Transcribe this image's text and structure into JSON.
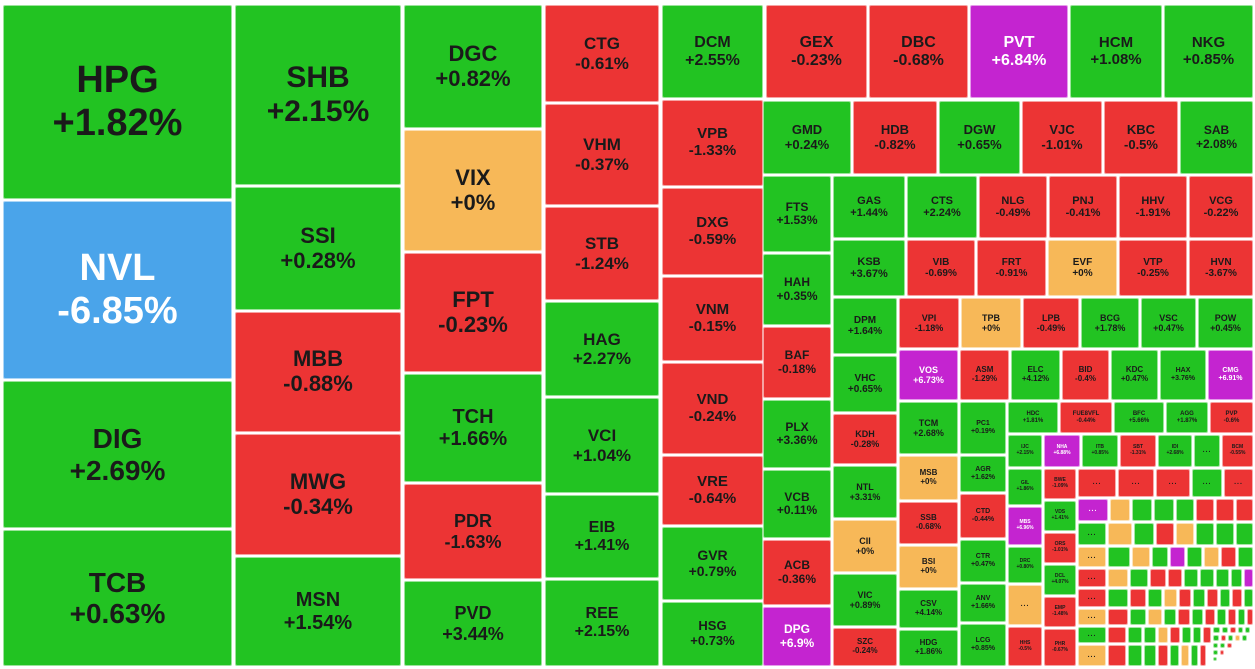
{
  "chart_data": {
    "type": "treemap",
    "title": "",
    "colors": {
      "up": "#22c322",
      "down": "#ec3434",
      "flat": "#f7b858",
      "ceiling": "#c424d0",
      "floor": "#4aa4ea"
    },
    "tiles": [
      {
        "ticker": "HPG",
        "change": "+1.82%",
        "status": "up"
      },
      {
        "ticker": "NVL",
        "change": "-6.85%",
        "status": "floor"
      },
      {
        "ticker": "DIG",
        "change": "+2.69%",
        "status": "up"
      },
      {
        "ticker": "TCB",
        "change": "+0.63%",
        "status": "up"
      },
      {
        "ticker": "SHB",
        "change": "+2.15%",
        "status": "up"
      },
      {
        "ticker": "SSI",
        "change": "+0.28%",
        "status": "up"
      },
      {
        "ticker": "MBB",
        "change": "-0.88%",
        "status": "down"
      },
      {
        "ticker": "MWG",
        "change": "-0.34%",
        "status": "down"
      },
      {
        "ticker": "MSN",
        "change": "+1.54%",
        "status": "up"
      },
      {
        "ticker": "DGC",
        "change": "+0.82%",
        "status": "up"
      },
      {
        "ticker": "VIX",
        "change": "+0%",
        "status": "flat"
      },
      {
        "ticker": "FPT",
        "change": "-0.23%",
        "status": "down"
      },
      {
        "ticker": "TCH",
        "change": "+1.66%",
        "status": "up"
      },
      {
        "ticker": "PDR",
        "change": "-1.63%",
        "status": "down"
      },
      {
        "ticker": "PVD",
        "change": "+3.44%",
        "status": "up"
      },
      {
        "ticker": "CTG",
        "change": "-0.61%",
        "status": "down"
      },
      {
        "ticker": "VHM",
        "change": "-0.37%",
        "status": "down"
      },
      {
        "ticker": "STB",
        "change": "-1.24%",
        "status": "down"
      },
      {
        "ticker": "HAG",
        "change": "+2.27%",
        "status": "up"
      },
      {
        "ticker": "VCI",
        "change": "+1.04%",
        "status": "up"
      },
      {
        "ticker": "EIB",
        "change": "+1.41%",
        "status": "up"
      },
      {
        "ticker": "REE",
        "change": "+2.15%",
        "status": "up"
      },
      {
        "ticker": "DCM",
        "change": "+2.55%",
        "status": "up"
      },
      {
        "ticker": "VPB",
        "change": "-1.33%",
        "status": "down"
      },
      {
        "ticker": "DXG",
        "change": "-0.59%",
        "status": "down"
      },
      {
        "ticker": "VNM",
        "change": "-0.15%",
        "status": "down"
      },
      {
        "ticker": "VND",
        "change": "-0.24%",
        "status": "down"
      },
      {
        "ticker": "VRE",
        "change": "-0.64%",
        "status": "down"
      },
      {
        "ticker": "GVR",
        "change": "+0.79%",
        "status": "up"
      },
      {
        "ticker": "HSG",
        "change": "+0.73%",
        "status": "up"
      },
      {
        "ticker": "GEX",
        "change": "-0.23%",
        "status": "down"
      },
      {
        "ticker": "DBC",
        "change": "-0.68%",
        "status": "down"
      },
      {
        "ticker": "PVT",
        "change": "+6.84%",
        "status": "ceiling"
      },
      {
        "ticker": "HCM",
        "change": "+1.08%",
        "status": "up"
      },
      {
        "ticker": "NKG",
        "change": "+0.85%",
        "status": "up"
      },
      {
        "ticker": "GMD",
        "change": "+0.24%",
        "status": "up"
      },
      {
        "ticker": "HDB",
        "change": "-0.82%",
        "status": "down"
      },
      {
        "ticker": "DGW",
        "change": "+0.65%",
        "status": "up"
      },
      {
        "ticker": "VJC",
        "change": "-1.01%",
        "status": "down"
      },
      {
        "ticker": "KBC",
        "change": "-0.5%",
        "status": "down"
      },
      {
        "ticker": "SAB",
        "change": "+2.08%",
        "status": "up"
      },
      {
        "ticker": "FTS",
        "change": "+1.53%",
        "status": "up"
      },
      {
        "ticker": "GAS",
        "change": "+1.44%",
        "status": "up"
      },
      {
        "ticker": "CTS",
        "change": "+2.24%",
        "status": "up"
      },
      {
        "ticker": "NLG",
        "change": "-0.49%",
        "status": "down"
      },
      {
        "ticker": "PNJ",
        "change": "-0.41%",
        "status": "down"
      },
      {
        "ticker": "HHV",
        "change": "-1.91%",
        "status": "down"
      },
      {
        "ticker": "VCG",
        "change": "-0.22%",
        "status": "down"
      },
      {
        "ticker": "HAH",
        "change": "+0.35%",
        "status": "up"
      },
      {
        "ticker": "KSB",
        "change": "+3.67%",
        "status": "up"
      },
      {
        "ticker": "VIB",
        "change": "-0.69%",
        "status": "down"
      },
      {
        "ticker": "FRT",
        "change": "-0.91%",
        "status": "down"
      },
      {
        "ticker": "EVF",
        "change": "+0%",
        "status": "flat"
      },
      {
        "ticker": "VTP",
        "change": "-0.25%",
        "status": "down"
      },
      {
        "ticker": "HVN",
        "change": "-3.67%",
        "status": "down"
      },
      {
        "ticker": "DPM",
        "change": "+1.64%",
        "status": "up"
      },
      {
        "ticker": "VPI",
        "change": "-1.18%",
        "status": "down"
      },
      {
        "ticker": "TPB",
        "change": "+0%",
        "status": "flat"
      },
      {
        "ticker": "LPB",
        "change": "-0.49%",
        "status": "down"
      },
      {
        "ticker": "BCG",
        "change": "+1.78%",
        "status": "up"
      },
      {
        "ticker": "VSC",
        "change": "+0.47%",
        "status": "up"
      },
      {
        "ticker": "POW",
        "change": "+0.45%",
        "status": "up"
      },
      {
        "ticker": "BAF",
        "change": "-0.18%",
        "status": "down"
      },
      {
        "ticker": "VHC",
        "change": "+0.65%",
        "status": "up"
      },
      {
        "ticker": "VOS",
        "change": "+6.73%",
        "status": "ceiling"
      },
      {
        "ticker": "ASM",
        "change": "-1.29%",
        "status": "down"
      },
      {
        "ticker": "ELC",
        "change": "+4.12%",
        "status": "up"
      },
      {
        "ticker": "BID",
        "change": "-0.4%",
        "status": "down"
      },
      {
        "ticker": "KDC",
        "change": "+0.47%",
        "status": "up"
      },
      {
        "ticker": "HAX",
        "change": "+3.76%",
        "status": "up"
      },
      {
        "ticker": "CMG",
        "change": "+6.91%",
        "status": "ceiling"
      },
      {
        "ticker": "PLX",
        "change": "+3.36%",
        "status": "up"
      },
      {
        "ticker": "KDH",
        "change": "-0.28%",
        "status": "down"
      },
      {
        "ticker": "TCM",
        "change": "+2.68%",
        "status": "up"
      },
      {
        "ticker": "PC1",
        "change": "+0.19%",
        "status": "up"
      },
      {
        "ticker": "HDC",
        "change": "+1.81%",
        "status": "up"
      },
      {
        "ticker": "FUE8VFL",
        "change": "-0.44%",
        "status": "down"
      },
      {
        "ticker": "BFC",
        "change": "+5.66%",
        "status": "up"
      },
      {
        "ticker": "AGG",
        "change": "+1.87%",
        "status": "up"
      },
      {
        "ticker": "PVP",
        "change": "-0.6%",
        "status": "down"
      },
      {
        "ticker": "NTL",
        "change": "+3.31%",
        "status": "up"
      },
      {
        "ticker": "MSB",
        "change": "+0%",
        "status": "flat"
      },
      {
        "ticker": "AGR",
        "change": "+1.62%",
        "status": "up"
      },
      {
        "ticker": "IJC",
        "change": "+2.15%",
        "status": "up"
      },
      {
        "ticker": "NHA",
        "change": "+6.88%",
        "status": "ceiling"
      },
      {
        "ticker": "ITB",
        "change": "+0.85%",
        "status": "up"
      },
      {
        "ticker": "SBT",
        "change": "-1.31%",
        "status": "down"
      },
      {
        "ticker": "IDI",
        "change": "+2.68%",
        "status": "up"
      },
      {
        "ticker": "BCM",
        "change": "-0.55%",
        "status": "down"
      },
      {
        "ticker": "VCB",
        "change": "+0.11%",
        "status": "up"
      },
      {
        "ticker": "SSB",
        "change": "-0.68%",
        "status": "down"
      },
      {
        "ticker": "CTD",
        "change": "-0.44%",
        "status": "down"
      },
      {
        "ticker": "GIL",
        "change": "+1.86%",
        "status": "up"
      },
      {
        "ticker": "BWE",
        "change": "-1.09%",
        "status": "down"
      },
      {
        "ticker": "VDS",
        "change": "+1.41%",
        "status": "up"
      },
      {
        "ticker": "MBS",
        "change": "+6.96%",
        "status": "ceiling"
      },
      {
        "ticker": "CII",
        "change": "+0%",
        "status": "flat"
      },
      {
        "ticker": "BSI",
        "change": "+0%",
        "status": "flat"
      },
      {
        "ticker": "CTR",
        "change": "+0.47%",
        "status": "up"
      },
      {
        "ticker": "DRC",
        "change": "+0.80%",
        "status": "up"
      },
      {
        "ticker": "ORS",
        "change": "-1.01%",
        "status": "down"
      },
      {
        "ticker": "ACB",
        "change": "-0.36%",
        "status": "down"
      },
      {
        "ticker": "VIC",
        "change": "+0.89%",
        "status": "up"
      },
      {
        "ticker": "CSV",
        "change": "+4.14%",
        "status": "up"
      },
      {
        "ticker": "ANV",
        "change": "+1.66%",
        "status": "up"
      },
      {
        "ticker": "DCL",
        "change": "+4.07%",
        "status": "up"
      },
      {
        "ticker": "EMP",
        "change": "-1.48%",
        "status": "down"
      },
      {
        "ticker": "DPG",
        "change": "+6.9%",
        "status": "ceiling"
      },
      {
        "ticker": "SZC",
        "change": "-0.24%",
        "status": "down"
      },
      {
        "ticker": "HDG",
        "change": "+1.86%",
        "status": "up"
      },
      {
        "ticker": "LCG",
        "change": "+0.85%",
        "status": "up"
      },
      {
        "ticker": "HHS",
        "change": "-0.5%",
        "status": "down"
      },
      {
        "ticker": "PHR",
        "change": "-0.67%",
        "status": "down"
      }
    ],
    "more_label": "..."
  }
}
